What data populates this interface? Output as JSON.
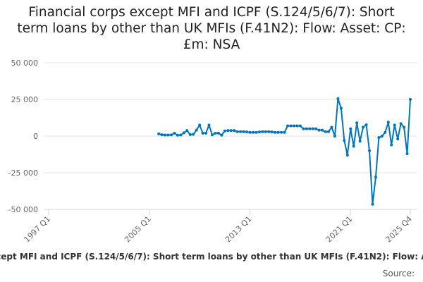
{
  "chart_data": {
    "type": "line",
    "title": "Financial corps except MFI and ICPF (S.124/5/6/7): Short term loans by other than UK MFIs (F.41N2): Flow: Asset: CP: £m: NSA",
    "title_lines": [
      "Financial corps except MFI and ICPF (S.124/5/6/7): Short",
      "term loans by other than UK MFIs (F.41N2): Flow: Asset: CP:",
      "£m: NSA"
    ],
    "xlabel": "",
    "ylabel": "",
    "x_axis": {
      "start": "1997 Q1",
      "end": "2025 Q4",
      "ticks": [
        {
          "label": "1997 Q1",
          "quarter_index": 0
        },
        {
          "label": "2005 Q1",
          "quarter_index": 32
        },
        {
          "label": "2013 Q1",
          "quarter_index": 64
        },
        {
          "label": "2021 Q1",
          "quarter_index": 96
        },
        {
          "label": "2025 Q4",
          "quarter_index": 115
        }
      ]
    },
    "ylim": [
      -50000,
      50000
    ],
    "y_ticks": [
      {
        "value": 50000,
        "label": "50 000"
      },
      {
        "value": 25000,
        "label": "25 000"
      },
      {
        "value": 0,
        "label": "0"
      },
      {
        "value": -25000,
        "label": "-25 000"
      },
      {
        "value": -50000,
        "label": "-50 000"
      }
    ],
    "grid": true,
    "series": [
      {
        "name": "Financial corps except MFI and ICPF (S.124/5/6/7): Short term loans by other than UK MFIs (F.41N2): Flow: Asset: CP: £m: NSA",
        "color": "#0075c2",
        "start": "2005 Q4",
        "start_quarter_index": 35,
        "values": [
          1500,
          900,
          700,
          700,
          800,
          2000,
          600,
          700,
          2200,
          3800,
          1000,
          1200,
          4000,
          7500,
          2000,
          2000,
          7500,
          800,
          2000,
          2000,
          600,
          3500,
          3800,
          3800,
          3800,
          3000,
          3000,
          3000,
          2800,
          2500,
          2500,
          2500,
          2800,
          3000,
          3000,
          3000,
          2800,
          2500,
          2500,
          2500,
          2500,
          7000,
          7000,
          7000,
          7000,
          7000,
          5000,
          5000,
          5000,
          5000,
          5000,
          4000,
          4000,
          3000,
          3000,
          6000,
          0,
          25500,
          19000,
          -3000,
          -13000,
          5000,
          -7000,
          9000,
          -3500,
          6000,
          7700,
          -10000,
          -46500,
          -28000,
          -1000,
          0,
          2500,
          9500,
          -6000,
          7500,
          -2000,
          8500,
          6000,
          -12000,
          25000
        ]
      }
    ],
    "legend": "bottom"
  },
  "source_label": "Source:"
}
